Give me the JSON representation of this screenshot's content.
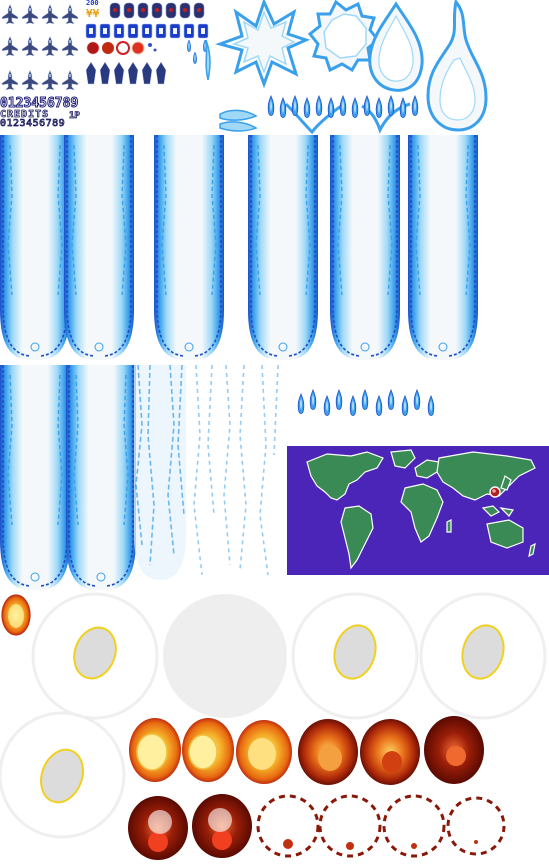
{
  "sheet": {
    "digits_large": "0123456789",
    "credits_label": "CREDITS",
    "player_label": "1P",
    "digits_small": "0123456789",
    "score_popup": "200",
    "bonus_glyphs": "¥¥"
  },
  "colors": {
    "beam_core": "#f4f8fb",
    "beam_light": "#9fd9f7",
    "beam_mid": "#3aa0ec",
    "beam_dark": "#1c50c8",
    "jet_body": "#3a4a80",
    "ocean": "#4a25b8",
    "land": "#3a8a55",
    "explosion_outer": "#f0b020",
    "explosion_inner": "#c03010",
    "smoke": "#8a1808",
    "shell": "#f0f0f0",
    "shell_inner": "#dcdcdc"
  },
  "icons": [
    "jet-sprite-icon",
    "powerup-icon",
    "bomb-icon",
    "fireball-icon",
    "beam-sprite-icon",
    "flame-shard-icon",
    "world-map-icon",
    "explosion-sprite-icon"
  ]
}
